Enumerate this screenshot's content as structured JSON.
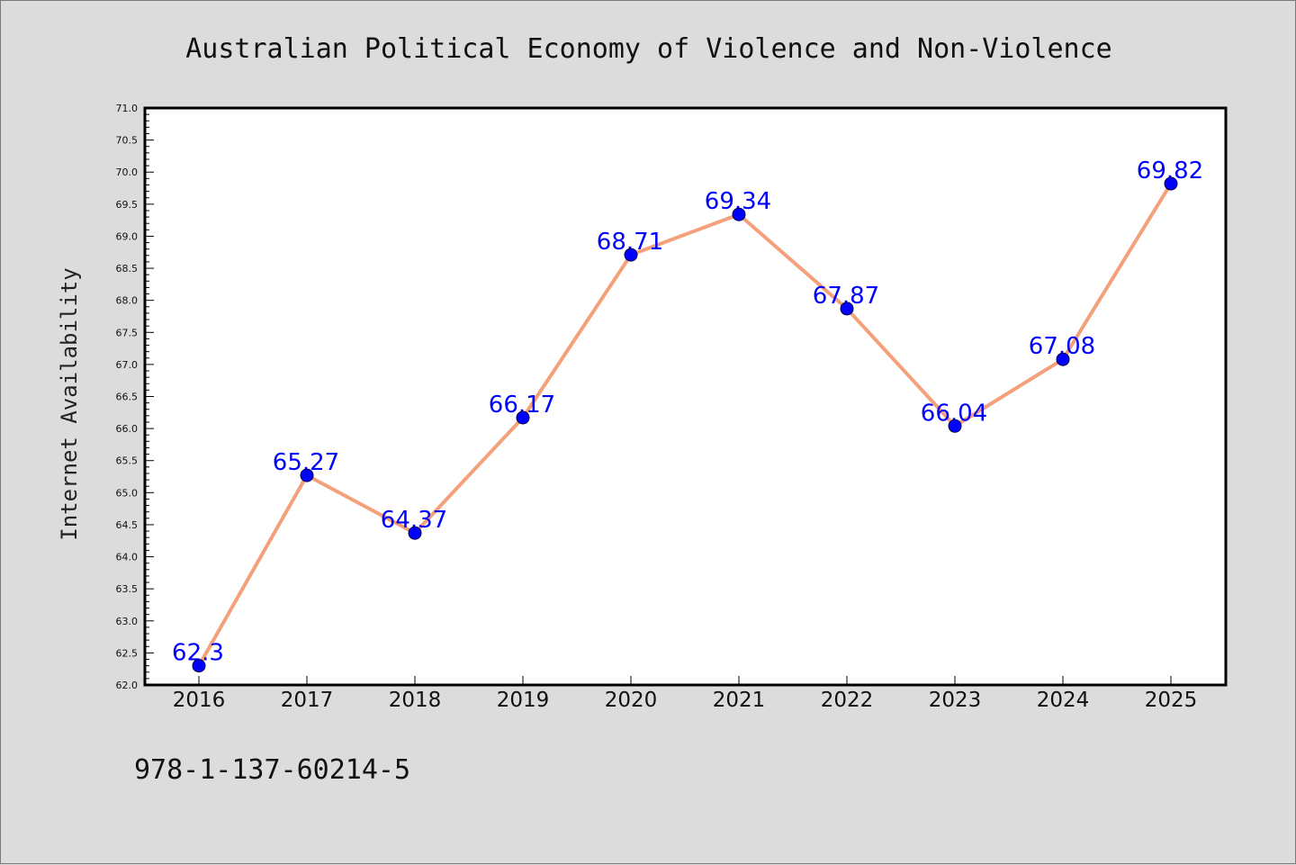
{
  "chart_data": {
    "type": "line",
    "title": "Australian Political Economy of Violence and Non-Violence",
    "xlabel": "",
    "ylabel": "Internet Availability",
    "categories": [
      "2016",
      "2017",
      "2018",
      "2019",
      "2020",
      "2021",
      "2022",
      "2023",
      "2024",
      "2025"
    ],
    "values": [
      62.3,
      65.27,
      64.37,
      66.17,
      68.71,
      69.34,
      67.87,
      66.04,
      67.08,
      69.82
    ],
    "data_labels": [
      "62.3",
      "65.27",
      "64.37",
      "66.17",
      "68.71",
      "69.34",
      "67.87",
      "66.04",
      "67.08",
      "69.82"
    ],
    "ylim": [
      62.0,
      71.0
    ],
    "yticks": [
      "62.0",
      "62.5",
      "63.0",
      "63.5",
      "64.0",
      "64.5",
      "65.0",
      "65.5",
      "66.0",
      "66.5",
      "67.0",
      "67.5",
      "68.0",
      "68.5",
      "69.0",
      "69.5",
      "70.0",
      "70.5",
      "71.0"
    ],
    "grid": false,
    "line_color": "#f4a07a",
    "marker_color": "#0000ff",
    "label_color": "#0000ff",
    "background_color": "#dcdcdc"
  },
  "footer": {
    "isbn": "978-1-137-60214-5"
  }
}
